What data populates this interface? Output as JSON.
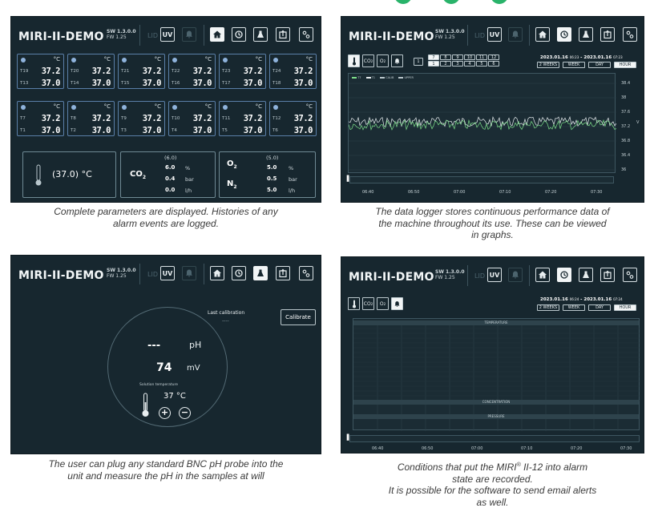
{
  "header": {
    "title": "MIRI-II-DEMO",
    "sw": "SW 1.3.0.0",
    "fw": "FW 1.25",
    "lid": "LID",
    "uv": "UV"
  },
  "colors": {
    "accent": "#29b36a",
    "screen_bg": "#17272f",
    "sensor_border": "#5a7fa8",
    "line_green": "#7ddf8a",
    "line_white": "#e8eef0"
  },
  "panel1": {
    "unit": "°C",
    "sensors_row1": [
      {
        "a": "T19",
        "av": "37.2",
        "b": "T13",
        "bv": "37.0"
      },
      {
        "a": "T20",
        "av": "37.2",
        "b": "T14",
        "bv": "37.0"
      },
      {
        "a": "T21",
        "av": "37.2",
        "b": "T15",
        "bv": "37.0"
      },
      {
        "a": "T22",
        "av": "37.2",
        "b": "T16",
        "bv": "37.0"
      },
      {
        "a": "T23",
        "av": "37.2",
        "b": "T17",
        "bv": "37.0"
      },
      {
        "a": "T24",
        "av": "37.2",
        "b": "T18",
        "bv": "37.0"
      }
    ],
    "sensors_row2": [
      {
        "a": "T7",
        "av": "37.2",
        "b": "T1",
        "bv": "37.0"
      },
      {
        "a": "T8",
        "av": "37.2",
        "b": "T2",
        "bv": "37.0"
      },
      {
        "a": "T9",
        "av": "37.2",
        "b": "T3",
        "bv": "37.0"
      },
      {
        "a": "T10",
        "av": "37.2",
        "b": "T4",
        "bv": "37.0"
      },
      {
        "a": "T11",
        "av": "37.2",
        "b": "T5",
        "bv": "37.0"
      },
      {
        "a": "T12",
        "av": "37.2",
        "b": "T6",
        "bv": "37.0"
      }
    ],
    "temp_display": "(37.0) °C",
    "co2": {
      "label": "CO",
      "sub": "2",
      "set": "(6.0)",
      "v1": "6.0",
      "u1": "%",
      "v2": "0.4",
      "u2": "bar",
      "v3": "0.0",
      "u3": "l/h"
    },
    "o2": {
      "label": "O",
      "sub": "2",
      "set": "(5.0)",
      "v1": "5.0",
      "u1": "%",
      "v2": "0.5",
      "u2": "bar"
    },
    "n2": {
      "label": "N",
      "sub": "2",
      "v3": "5.0",
      "u3": "l/h"
    },
    "caption": [
      "Complete parameters are displayed. Histories of any",
      "alarm events are logged."
    ]
  },
  "panel2": {
    "date_from": "2023.01.16",
    "time_from": "06:23",
    "date_to": "2023.01.16",
    "time_to": "07:23",
    "range_buttons": [
      "2 WEEKS",
      "WEEK",
      "DAY",
      "HOUR"
    ],
    "range_selected": "HOUR",
    "co2_tab": "CO",
    "o2_tab": "O",
    "tab_sub": "2",
    "tray_top": [
      "7",
      "8",
      "9",
      "10",
      "11",
      "12"
    ],
    "tray_bottom": [
      "1",
      "2",
      "3",
      "4",
      "5",
      "6"
    ],
    "tray_first": "1",
    "y_ticks": [
      "38.4",
      "38",
      "37.6",
      "37.2",
      "36.8",
      "36.4",
      "36"
    ],
    "y_unit": "V",
    "x_ticks": [
      "06:40",
      "06:50",
      "07:00",
      "07:10",
      "07:20",
      "07:30"
    ],
    "legend": [
      "T7",
      "T1",
      "CALIB",
      "UPPER"
    ],
    "caption": [
      "The data logger stores continuous performance data of",
      "the machine throughout its use. These can be viewed",
      "in graphs."
    ]
  },
  "panel3": {
    "last_calibration_label": "Last calibration",
    "last_calibration_value": "----",
    "calibrate_button": "Calibrate",
    "ph_value": "---",
    "ph_unit": "pH",
    "mv_value": "74",
    "mv_unit": "mV",
    "solution_temp_label": "Solution temperature",
    "solution_temp": "37 °C",
    "plus": "+",
    "minus": "−",
    "caption": [
      "The user can plug any standard BNC pH probe into the",
      "unit and measure the pH in the samples at will"
    ]
  },
  "panel4": {
    "date_from": "2023.01.16",
    "time_from": "06:24",
    "date_to": "2023.01.16",
    "time_to": "07:24",
    "range_buttons": [
      "2 WEEKS",
      "WEEK",
      "DAY",
      "HOUR"
    ],
    "range_selected": "HOUR",
    "sections": [
      "TEMPERATURE",
      "CONCENTRATION",
      "PRESSURE"
    ],
    "x_ticks": [
      "06:40",
      "06:50",
      "07:00",
      "07:10",
      "07:20",
      "07:30"
    ],
    "caption_line1": "Conditions that put the MIRI",
    "caption_reg": "®",
    "caption_line1b": " II-12 into alarm",
    "caption_rest": [
      "state are recorded.",
      "It is possible for the software to send email alerts",
      "as well."
    ]
  }
}
